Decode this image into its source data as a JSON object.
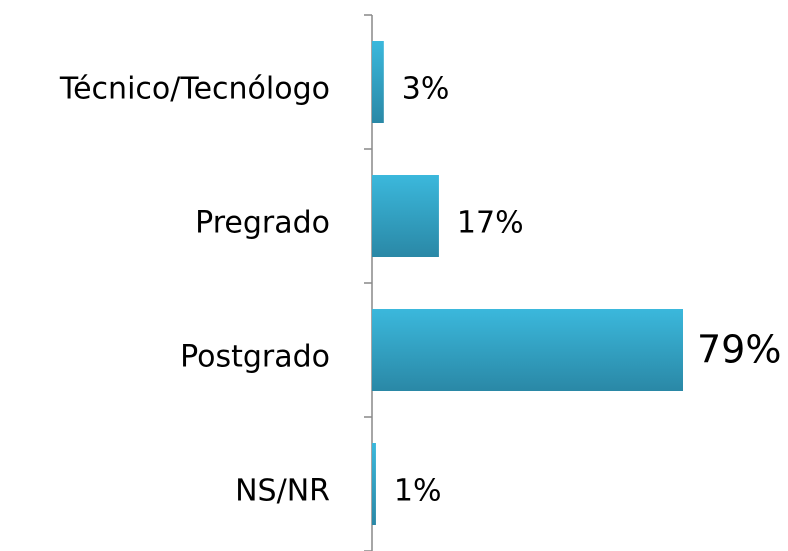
{
  "chart_data": {
    "type": "bar",
    "orientation": "horizontal",
    "categories": [
      "Técnico/Tecnólogo",
      "Pregrado",
      "Postgrado",
      "NS/NR"
    ],
    "values": [
      3,
      17,
      79,
      1
    ],
    "value_labels": [
      "3%",
      "17%",
      "79%",
      "1%"
    ],
    "color": "#31a9cc"
  }
}
